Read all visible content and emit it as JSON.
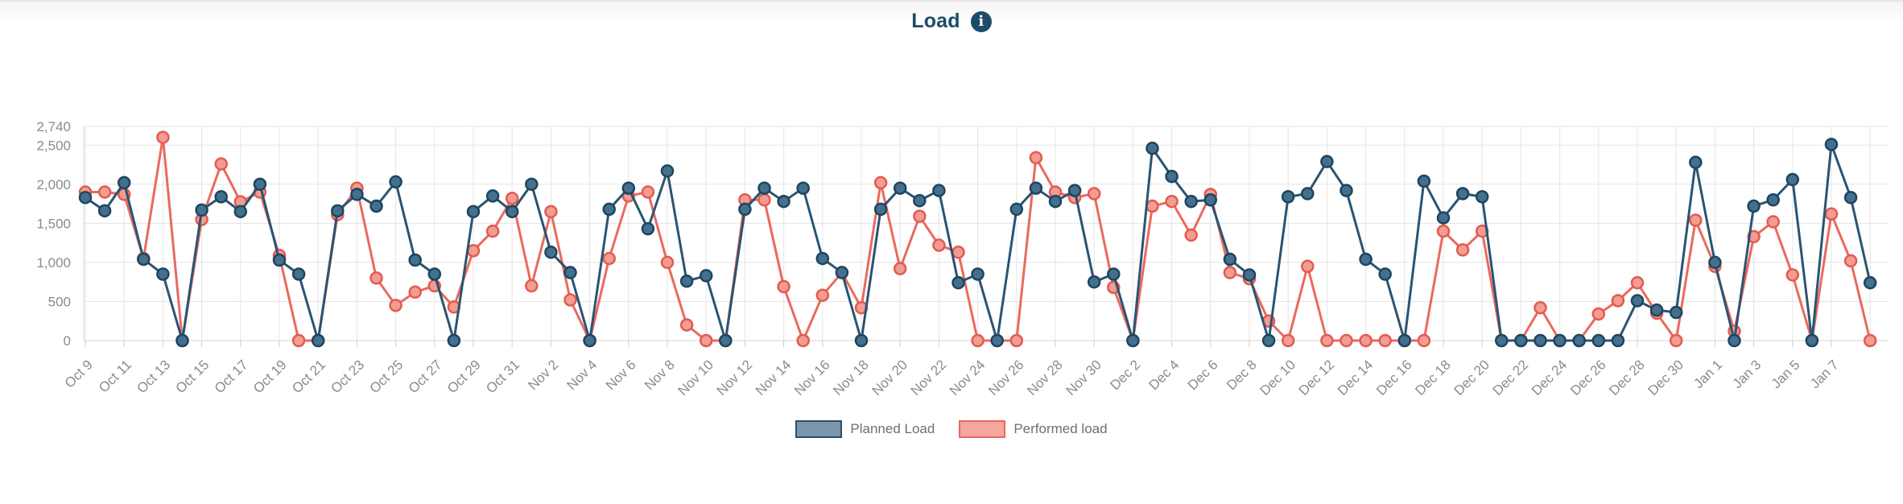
{
  "header": {
    "title": "Load",
    "info_icon_glyph": "i"
  },
  "legend": {
    "items": [
      {
        "label": "Planned Load",
        "swatch_fill": "#7e96aa",
        "swatch_border": "#25506f"
      },
      {
        "label": "Performed load",
        "swatch_fill": "#f4a79d",
        "swatch_border": "#e8695e"
      }
    ]
  },
  "colors": {
    "title": "#1b4c68",
    "grid": "#e5e5e5",
    "axis": "#d6d6d6",
    "tick": "#cccccc",
    "axis_text": "#8b8b8b",
    "background": "#ffffff"
  },
  "chart_data": {
    "type": "line",
    "title": "Load",
    "xlabel": "",
    "ylabel": "",
    "ylim": [
      0,
      2740
    ],
    "grid": true,
    "legend_position": "bottom",
    "x_label_step": 2,
    "x": [
      "Oct 9",
      "Oct 10",
      "Oct 11",
      "Oct 12",
      "Oct 13",
      "Oct 14",
      "Oct 15",
      "Oct 16",
      "Oct 17",
      "Oct 18",
      "Oct 19",
      "Oct 20",
      "Oct 21",
      "Oct 22",
      "Oct 23",
      "Oct 24",
      "Oct 25",
      "Oct 26",
      "Oct 27",
      "Oct 28",
      "Oct 29",
      "Oct 30",
      "Oct 31",
      "Nov 1",
      "Nov 2",
      "Nov 3",
      "Nov 4",
      "Nov 5",
      "Nov 6",
      "Nov 7",
      "Nov 8",
      "Nov 9",
      "Nov 10",
      "Nov 11",
      "Nov 12",
      "Nov 13",
      "Nov 14",
      "Nov 15",
      "Nov 16",
      "Nov 17",
      "Nov 18",
      "Nov 19",
      "Nov 20",
      "Nov 21",
      "Nov 22",
      "Nov 23",
      "Nov 24",
      "Nov 25",
      "Nov 26",
      "Nov 27",
      "Nov 28",
      "Nov 29",
      "Nov 30",
      "Dec 1",
      "Dec 2",
      "Dec 3",
      "Dec 4",
      "Dec 5",
      "Dec 6",
      "Dec 7",
      "Dec 8",
      "Dec 9",
      "Dec 10",
      "Dec 11",
      "Dec 12",
      "Dec 13",
      "Dec 14",
      "Dec 15",
      "Dec 16",
      "Dec 17",
      "Dec 18",
      "Dec 19",
      "Dec 20",
      "Dec 21",
      "Dec 22",
      "Dec 23",
      "Dec 24",
      "Dec 25",
      "Dec 26",
      "Dec 27",
      "Dec 28",
      "Dec 29",
      "Dec 30",
      "Dec 31",
      "Jan 1",
      "Jan 2",
      "Jan 3",
      "Jan 4",
      "Jan 5",
      "Jan 6",
      "Jan 7",
      "Jan 8",
      "Jan 9"
    ],
    "y_ticks": {
      "labels": [
        "0",
        "500",
        "1,000",
        "1,500",
        "2,000",
        "2,500",
        "2,740"
      ],
      "values": [
        0,
        500,
        1000,
        1500,
        2000,
        2500,
        2740
      ]
    },
    "series": [
      {
        "name": "Performed load",
        "line_color": "#e96a5e",
        "marker_fill": "#f29c92",
        "marker_stroke": "#e25b50",
        "values": [
          1900,
          1900,
          1870,
          1050,
          2600,
          0,
          1550,
          2260,
          1775,
          1900,
          1090,
          0,
          0,
          1610,
          1950,
          800,
          450,
          620,
          700,
          430,
          1150,
          1400,
          1820,
          700,
          1650,
          520,
          0,
          1050,
          1850,
          1900,
          1000,
          200,
          0,
          0,
          1800,
          1800,
          690,
          0,
          580,
          870,
          420,
          2020,
          920,
          1590,
          1220,
          1130,
          0,
          0,
          0,
          2340,
          1900,
          1830,
          1880,
          680,
          0,
          1720,
          1780,
          1350,
          1870,
          870,
          790,
          250,
          0,
          950,
          0,
          0,
          0,
          0,
          0,
          0,
          1400,
          1160,
          1400,
          0,
          0,
          420,
          0,
          0,
          340,
          510,
          740,
          350,
          0,
          1540,
          950,
          120,
          1330,
          1520,
          840,
          0,
          1620,
          1020,
          0
        ]
      },
      {
        "name": "Planned Load",
        "line_color": "#2a5472",
        "marker_fill": "#44708e",
        "marker_stroke": "#1d4560",
        "values": [
          1830,
          1660,
          2020,
          1040,
          850,
          0,
          1670,
          1840,
          1650,
          2000,
          1030,
          850,
          0,
          1660,
          1870,
          1720,
          2030,
          1030,
          850,
          0,
          1650,
          1850,
          1650,
          2000,
          1130,
          870,
          0,
          1680,
          1950,
          1430,
          2170,
          760,
          830,
          0,
          1680,
          1950,
          1780,
          1950,
          1050,
          870,
          0,
          1680,
          1950,
          1790,
          1920,
          740,
          850,
          0,
          1680,
          1950,
          1780,
          1920,
          750,
          850,
          0,
          2460,
          2100,
          1780,
          1800,
          1040,
          840,
          0,
          1840,
          1880,
          2290,
          1920,
          1040,
          850,
          0,
          2040,
          1570,
          1880,
          1840,
          0,
          0,
          0,
          0,
          0,
          0,
          0,
          510,
          390,
          360,
          2280,
          1000,
          0,
          1720,
          1800,
          2060,
          0,
          2510,
          1830,
          740
        ]
      }
    ]
  }
}
